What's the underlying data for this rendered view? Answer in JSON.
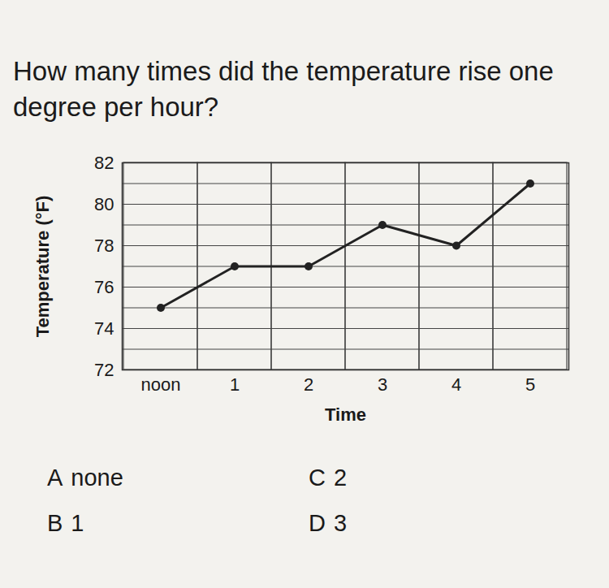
{
  "question": "How many times did the temperature rise one degree per hour?",
  "choices": [
    {
      "letter": "A",
      "text": "none"
    },
    {
      "letter": "B",
      "text": "1"
    },
    {
      "letter": "C",
      "text": "2"
    },
    {
      "letter": "D",
      "text": "3"
    }
  ],
  "chart_data": {
    "type": "line",
    "x_label": "Time",
    "y_label": "Temperature (°F)",
    "categories": [
      "noon",
      "1",
      "2",
      "3",
      "4",
      "5"
    ],
    "values": [
      75,
      77,
      77,
      79,
      78,
      81
    ],
    "color": "#222222",
    "marker": "circle",
    "ylim": [
      72,
      82
    ],
    "yticks": [
      72,
      74,
      76,
      78,
      80,
      82
    ],
    "grid": true
  }
}
